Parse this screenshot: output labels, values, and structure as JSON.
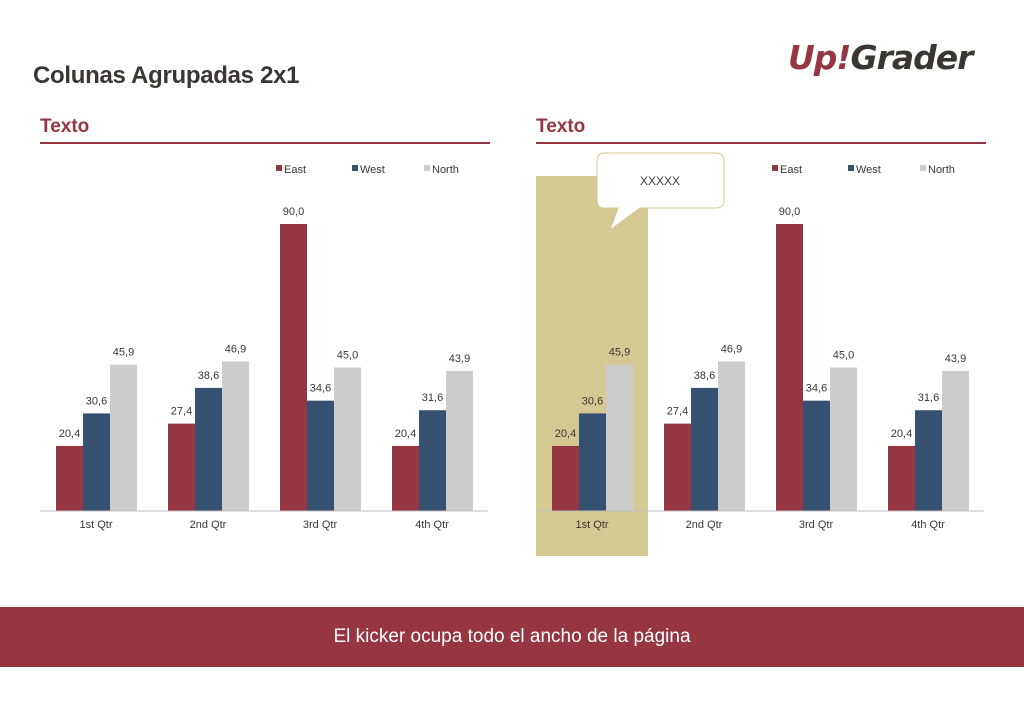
{
  "page": {
    "title": "Colunas Agrupadas 2x1",
    "logo": {
      "up": "Up",
      "bang": "!",
      "grader": "Grader"
    },
    "kicker": "El kicker ocupa todo el ancho de la página"
  },
  "colors": {
    "accent": "#953640",
    "east": "#953640",
    "west": "#36506f",
    "north": "#cccccc",
    "highlight": "#d5c993",
    "text": "#3a3632"
  },
  "left_panel": {
    "heading": "Texto"
  },
  "right_panel": {
    "heading": "Texto",
    "callout": "XXXXX",
    "highlighted_category": "1st Qtr"
  },
  "chart_data": [
    {
      "type": "bar",
      "title": "",
      "categories": [
        "1st Qtr",
        "2nd Qtr",
        "3rd Qtr",
        "4th Qtr"
      ],
      "series": [
        {
          "name": "East",
          "values": [
            20.4,
            27.4,
            90.0,
            20.4
          ],
          "labels": [
            "20,4",
            "27,4",
            "90,0",
            "20,4"
          ]
        },
        {
          "name": "West",
          "values": [
            30.6,
            38.6,
            34.6,
            31.6
          ],
          "labels": [
            "30,6",
            "38,6",
            "34,6",
            "31,6"
          ]
        },
        {
          "name": "North",
          "values": [
            45.9,
            46.9,
            45.0,
            43.9
          ],
          "labels": [
            "45,9",
            "46,9",
            "45,0",
            "43,9"
          ]
        }
      ],
      "ylim": [
        0,
        90
      ],
      "legend": "top-right",
      "grid": false
    },
    {
      "type": "bar",
      "title": "",
      "categories": [
        "1st Qtr",
        "2nd Qtr",
        "3rd Qtr",
        "4th Qtr"
      ],
      "series": [
        {
          "name": "East",
          "values": [
            20.4,
            27.4,
            90.0,
            20.4
          ],
          "labels": [
            "20,4",
            "27,4",
            "90,0",
            "20,4"
          ]
        },
        {
          "name": "West",
          "values": [
            30.6,
            38.6,
            34.6,
            31.6
          ],
          "labels": [
            "30,6",
            "38,6",
            "34,6",
            "31,6"
          ]
        },
        {
          "name": "North",
          "values": [
            45.9,
            46.9,
            45.0,
            43.9
          ],
          "labels": [
            "45,9",
            "46,9",
            "45,0",
            "43,9"
          ]
        }
      ],
      "ylim": [
        0,
        90
      ],
      "legend": "top-right",
      "grid": false
    }
  ]
}
